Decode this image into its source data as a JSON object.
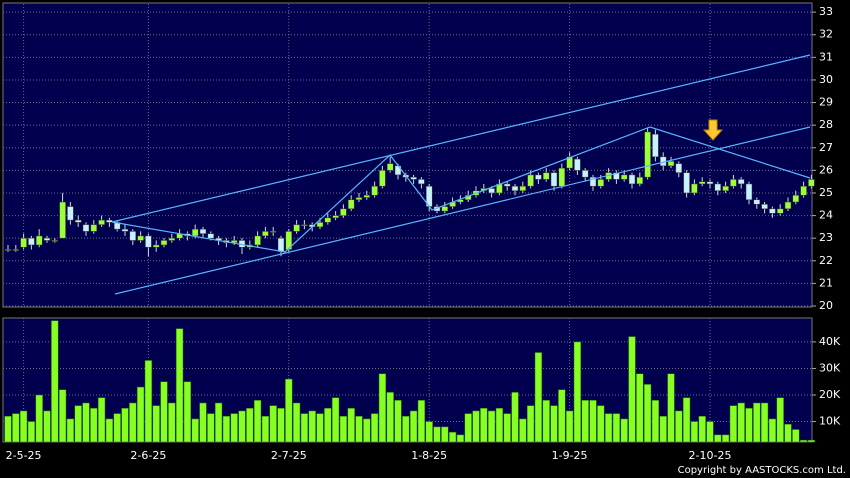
{
  "chart_data": {
    "type": "candlestick",
    "categories": [
      null,
      null,
      "2-5-25",
      null,
      null,
      null,
      null,
      null,
      null,
      null,
      null,
      null,
      null,
      null,
      null,
      null,
      null,
      null,
      "2-6-25",
      null,
      null,
      null,
      null,
      null,
      null,
      null,
      null,
      null,
      null,
      null,
      null,
      null,
      null,
      null,
      null,
      null,
      "2-7-25",
      null,
      null,
      null,
      null,
      null,
      null,
      null,
      null,
      null,
      null,
      null,
      null,
      null,
      null,
      null,
      null,
      null,
      "1-8-25",
      null,
      null,
      null,
      null,
      null,
      null,
      null,
      null,
      null,
      null,
      null,
      null,
      null,
      null,
      null,
      null,
      null,
      "1-9-25",
      null,
      null,
      null,
      null,
      null,
      null,
      null,
      null,
      null,
      null,
      null,
      null,
      null,
      null,
      null,
      null,
      null,
      "2-10-25",
      null,
      null,
      null,
      null,
      null,
      null,
      null,
      null,
      null,
      null,
      null,
      null,
      null
    ],
    "candles": [
      [
        22.5,
        22.7,
        22.4,
        22.5
      ],
      [
        22.5,
        22.7,
        22.4,
        22.5
      ],
      [
        22.6,
        23.2,
        22.5,
        23.0
      ],
      [
        23.0,
        23.1,
        22.5,
        22.7
      ],
      [
        22.7,
        23.4,
        22.6,
        23.1
      ],
      [
        23.0,
        23.1,
        22.8,
        22.9
      ],
      [
        22.9,
        23.0,
        22.8,
        22.9
      ],
      [
        23.0,
        25.0,
        23.0,
        24.6
      ],
      [
        24.4,
        24.6,
        23.6,
        23.8
      ],
      [
        23.8,
        24.0,
        23.5,
        23.7
      ],
      [
        23.6,
        23.7,
        23.1,
        23.3
      ],
      [
        23.3,
        23.8,
        23.2,
        23.6
      ],
      [
        23.6,
        24.0,
        23.5,
        23.8
      ],
      [
        23.8,
        23.9,
        23.5,
        23.7
      ],
      [
        23.7,
        23.8,
        23.3,
        23.4
      ],
      [
        23.4,
        23.6,
        23.1,
        23.3
      ],
      [
        23.3,
        23.4,
        22.7,
        22.9
      ],
      [
        22.9,
        23.3,
        22.8,
        23.1
      ],
      [
        23.1,
        23.2,
        22.2,
        22.6
      ],
      [
        22.6,
        22.9,
        22.4,
        22.7
      ],
      [
        22.7,
        23.0,
        22.6,
        22.9
      ],
      [
        22.9,
        23.2,
        22.8,
        23.0
      ],
      [
        23.0,
        23.4,
        22.9,
        23.2
      ],
      [
        23.2,
        23.3,
        22.9,
        23.1
      ],
      [
        23.1,
        23.6,
        23.0,
        23.4
      ],
      [
        23.4,
        23.5,
        23.0,
        23.2
      ],
      [
        23.2,
        23.3,
        22.9,
        23.0
      ],
      [
        23.0,
        23.1,
        22.7,
        22.9
      ],
      [
        22.9,
        23.0,
        22.6,
        22.8
      ],
      [
        22.8,
        23.1,
        22.7,
        22.9
      ],
      [
        22.9,
        23.0,
        22.3,
        22.6
      ],
      [
        22.6,
        22.9,
        22.5,
        22.7
      ],
      [
        22.7,
        23.3,
        22.6,
        23.1
      ],
      [
        23.1,
        23.5,
        23.0,
        23.3
      ],
      [
        23.3,
        23.5,
        23.1,
        23.3
      ],
      [
        23.0,
        23.1,
        22.2,
        22.4
      ],
      [
        22.5,
        23.4,
        22.4,
        23.3
      ],
      [
        23.3,
        23.8,
        23.2,
        23.6
      ],
      [
        23.6,
        23.8,
        23.4,
        23.6
      ],
      [
        23.6,
        23.7,
        23.3,
        23.5
      ],
      [
        23.5,
        23.9,
        23.4,
        23.7
      ],
      [
        23.7,
        24.1,
        23.6,
        23.9
      ],
      [
        23.9,
        24.2,
        23.8,
        24.0
      ],
      [
        24.0,
        24.5,
        23.9,
        24.3
      ],
      [
        24.3,
        24.9,
        24.2,
        24.7
      ],
      [
        24.7,
        25.0,
        24.6,
        24.8
      ],
      [
        24.8,
        25.1,
        24.7,
        24.9
      ],
      [
        24.9,
        25.5,
        24.8,
        25.3
      ],
      [
        25.3,
        26.2,
        25.2,
        26.0
      ],
      [
        26.0,
        26.6,
        25.9,
        26.3
      ],
      [
        26.2,
        26.3,
        25.6,
        25.8
      ],
      [
        25.8,
        25.9,
        25.5,
        25.7
      ],
      [
        25.7,
        25.8,
        25.4,
        25.6
      ],
      [
        25.6,
        25.7,
        25.2,
        25.4
      ],
      [
        25.3,
        25.4,
        24.2,
        24.4
      ],
      [
        24.4,
        24.5,
        24.1,
        24.2
      ],
      [
        24.2,
        24.6,
        24.1,
        24.4
      ],
      [
        24.4,
        24.8,
        24.3,
        24.6
      ],
      [
        24.6,
        24.9,
        24.5,
        24.7
      ],
      [
        24.7,
        25.1,
        24.6,
        24.9
      ],
      [
        24.9,
        25.3,
        24.8,
        25.1
      ],
      [
        25.1,
        25.4,
        25.0,
        25.2
      ],
      [
        25.2,
        25.3,
        24.8,
        25.0
      ],
      [
        25.0,
        25.6,
        24.9,
        25.4
      ],
      [
        25.4,
        25.5,
        25.1,
        25.3
      ],
      [
        25.3,
        25.4,
        24.9,
        25.1
      ],
      [
        25.1,
        25.5,
        25.0,
        25.3
      ],
      [
        25.3,
        26.0,
        25.2,
        25.8
      ],
      [
        25.8,
        25.9,
        25.4,
        25.6
      ],
      [
        25.6,
        26.1,
        25.5,
        25.9
      ],
      [
        25.9,
        26.0,
        25.1,
        25.3
      ],
      [
        25.3,
        26.3,
        25.2,
        26.1
      ],
      [
        26.1,
        26.8,
        26.0,
        26.6
      ],
      [
        26.5,
        26.6,
        25.8,
        26.0
      ],
      [
        26.0,
        26.1,
        25.5,
        25.7
      ],
      [
        25.7,
        25.8,
        25.1,
        25.3
      ],
      [
        25.3,
        25.8,
        25.2,
        25.6
      ],
      [
        25.6,
        26.1,
        25.5,
        25.9
      ],
      [
        25.9,
        26.0,
        25.4,
        25.6
      ],
      [
        25.6,
        26.0,
        25.5,
        25.8
      ],
      [
        25.8,
        25.9,
        25.2,
        25.4
      ],
      [
        25.4,
        25.9,
        25.3,
        25.7
      ],
      [
        25.7,
        27.9,
        25.6,
        27.7
      ],
      [
        27.6,
        27.8,
        26.4,
        26.6
      ],
      [
        26.6,
        26.8,
        26.0,
        26.2
      ],
      [
        26.2,
        26.6,
        26.1,
        26.4
      ],
      [
        26.3,
        26.4,
        25.7,
        25.9
      ],
      [
        25.9,
        26.0,
        24.8,
        25.0
      ],
      [
        25.0,
        25.6,
        24.9,
        25.4
      ],
      [
        25.4,
        25.7,
        25.3,
        25.5
      ],
      [
        25.5,
        25.6,
        25.2,
        25.4
      ],
      [
        25.4,
        25.5,
        24.9,
        25.1
      ],
      [
        25.1,
        25.5,
        25.0,
        25.3
      ],
      [
        25.3,
        25.8,
        25.2,
        25.6
      ],
      [
        25.6,
        25.7,
        25.2,
        25.4
      ],
      [
        25.4,
        25.5,
        24.5,
        24.7
      ],
      [
        24.7,
        24.8,
        24.3,
        24.5
      ],
      [
        24.5,
        24.6,
        24.1,
        24.3
      ],
      [
        24.3,
        24.4,
        23.9,
        24.1
      ],
      [
        24.1,
        24.5,
        24.0,
        24.3
      ],
      [
        24.3,
        24.8,
        24.2,
        24.6
      ],
      [
        24.6,
        25.1,
        24.5,
        24.9
      ],
      [
        24.9,
        25.5,
        24.8,
        25.3
      ],
      [
        25.3,
        25.8,
        25.2,
        25.6
      ]
    ],
    "volume": [
      12000,
      13000,
      14000,
      10000,
      20000,
      14000,
      48000,
      22000,
      11000,
      16000,
      17000,
      15000,
      19000,
      11000,
      13000,
      15000,
      17000,
      23000,
      33000,
      16000,
      25000,
      17000,
      45000,
      25000,
      11000,
      17000,
      13000,
      17000,
      12000,
      13000,
      14000,
      15000,
      18000,
      12000,
      16000,
      15000,
      26000,
      17000,
      13000,
      14000,
      13000,
      15000,
      19000,
      12000,
      15000,
      12000,
      11000,
      13000,
      28000,
      21000,
      18000,
      12000,
      14000,
      18000,
      10000,
      8000,
      8000,
      6000,
      5000,
      13000,
      14000,
      15000,
      14000,
      15000,
      13000,
      21000,
      11000,
      16000,
      36000,
      18000,
      16000,
      22000,
      14000,
      40000,
      18000,
      18000,
      16000,
      13000,
      13000,
      11000,
      42000,
      28000,
      24000,
      18000,
      12000,
      28000,
      14000,
      19000,
      10000,
      12000,
      10000,
      5000,
      5000,
      16000,
      17000,
      15000,
      17000,
      17000,
      11000,
      19000,
      9000,
      7000,
      3000,
      3000
    ],
    "up_color": "#9cff3c",
    "down_color": "#c8f0ff",
    "volume_color": "#88ff22",
    "ylim": [
      20,
      33.36
    ],
    "yticks": [
      20,
      21,
      22,
      23,
      24,
      25,
      26,
      27,
      28,
      29,
      30,
      31,
      32,
      33
    ],
    "y2lim": [
      2300,
      49000
    ],
    "y2ticks": [
      {
        "value": 10000,
        "label": "10K"
      },
      {
        "value": 20000,
        "label": "20K"
      },
      {
        "value": 30000,
        "label": "30K"
      },
      {
        "value": 40000,
        "label": "40K"
      }
    ],
    "grid": true,
    "copyright": "Copyright by AASTOCKS.com Ltd."
  }
}
